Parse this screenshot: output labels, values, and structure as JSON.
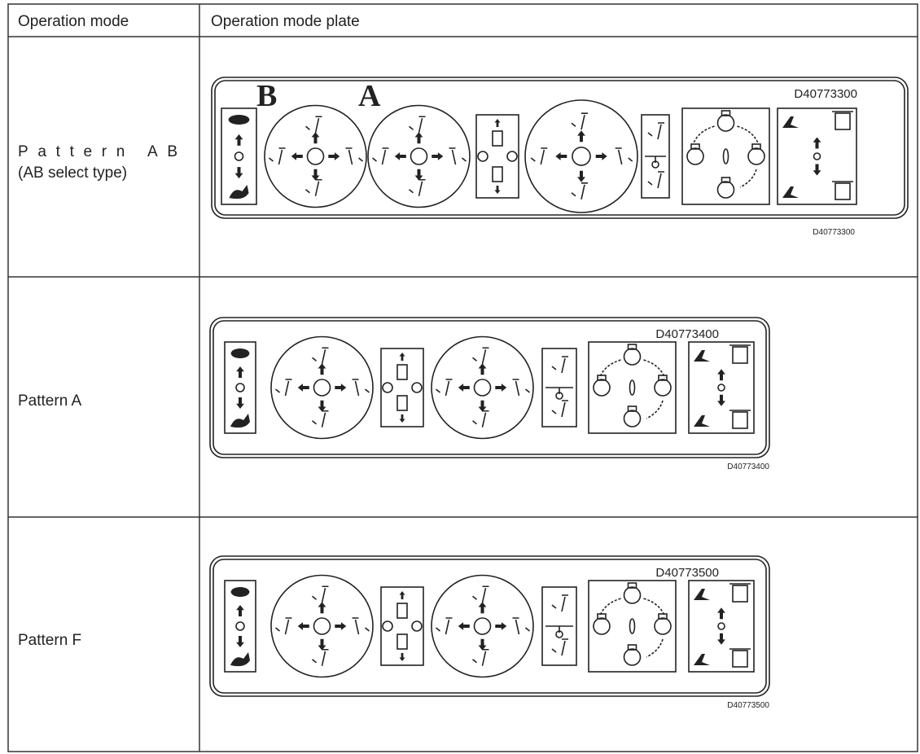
{
  "table": {
    "header": [
      "Operation mode",
      "Operation mode plate"
    ],
    "rows": [
      {
        "mode": "Pattern AB",
        "note": "(AB select type)",
        "plate": {
          "letters": [
            "B",
            "A"
          ],
          "code": "D40773300",
          "caption": "D40773300"
        }
      },
      {
        "mode": "Pattern A",
        "plate": {
          "code": "D40773400",
          "caption": "D40773400"
        }
      },
      {
        "mode": "Pattern F",
        "plate": {
          "code": "D40773500",
          "caption": "D40773500"
        }
      }
    ]
  }
}
